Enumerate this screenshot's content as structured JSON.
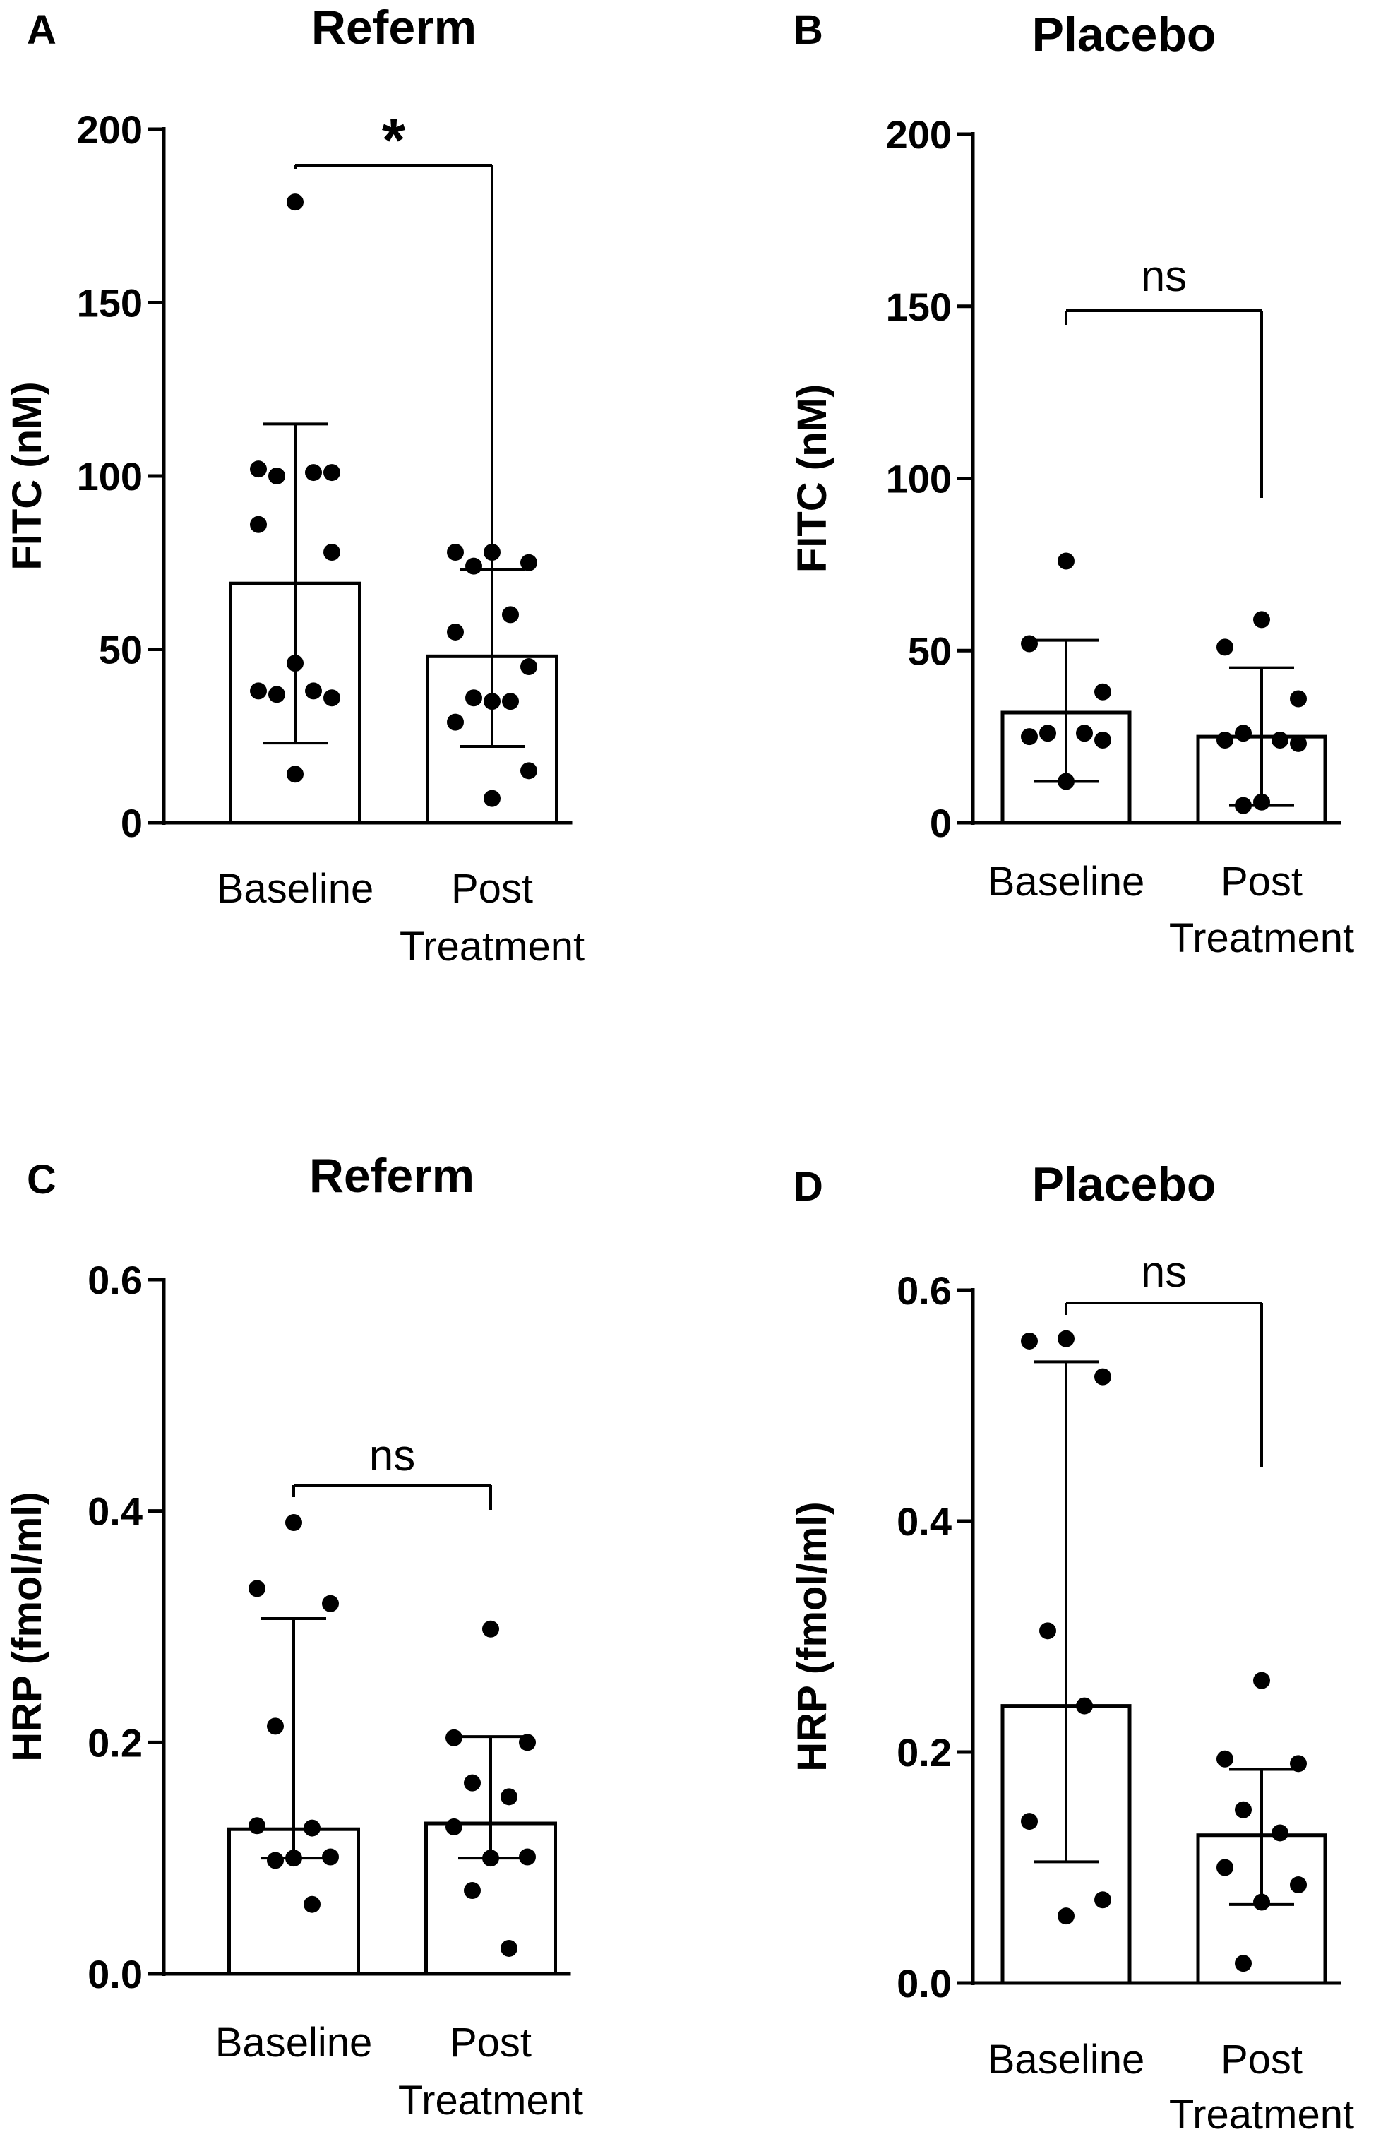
{
  "chart_data": [
    {
      "panel": "A",
      "type": "bar",
      "title": "Referm",
      "xlabel": "",
      "ylabel": "FITC (nM)",
      "ylim": [
        0,
        200
      ],
      "yticks": [
        "0",
        "50",
        "100",
        "150",
        "200"
      ],
      "categories": [
        {
          "line1": "Baseline",
          "line2": ""
        },
        {
          "line1": "Post",
          "line2": "Treatment"
        }
      ],
      "means": [
        69,
        48
      ],
      "error_low": [
        23,
        22
      ],
      "error_high": [
        115,
        73
      ],
      "points": [
        [
          179,
          102,
          101,
          100,
          101,
          86,
          78,
          46,
          37,
          38,
          38,
          36,
          14
        ],
        [
          78,
          78,
          75,
          74,
          60,
          55,
          45,
          35,
          36,
          35,
          29,
          15,
          7
        ]
      ],
      "significance": "*"
    },
    {
      "panel": "B",
      "type": "bar",
      "title": "Placebo",
      "xlabel": "",
      "ylabel": "FITC (nM)",
      "ylim": [
        0,
        200
      ],
      "yticks": [
        "0",
        "50",
        "100",
        "150",
        "200"
      ],
      "categories": [
        {
          "line1": "Baseline",
          "line2": ""
        },
        {
          "line1": "Post",
          "line2": "Treatment"
        }
      ],
      "means": [
        32,
        25
      ],
      "error_low": [
        12,
        5
      ],
      "error_high": [
        53,
        45
      ],
      "points": [
        [
          76,
          52,
          38,
          26,
          26,
          25,
          24,
          12
        ],
        [
          59,
          51,
          36,
          26,
          24,
          24,
          23,
          6,
          5
        ]
      ],
      "significance": "ns"
    },
    {
      "panel": "C",
      "type": "bar",
      "title": "Referm",
      "xlabel": "",
      "ylabel": "HRP (fmol/ml)",
      "ylim": [
        0,
        0.6
      ],
      "yticks": [
        "0.0",
        "0.2",
        "0.4",
        "0.6"
      ],
      "categories": [
        {
          "line1": "Baseline",
          "line2": ""
        },
        {
          "line1": "Post",
          "line2": "Treatment"
        }
      ],
      "means": [
        0.125,
        0.13
      ],
      "error_low": [
        0.1,
        0.1
      ],
      "error_high": [
        0.307,
        0.205
      ],
      "points": [
        [
          0.39,
          0.333,
          0.32,
          0.214,
          0.126,
          0.128,
          0.101,
          0.1,
          0.098,
          0.06
        ],
        [
          0.298,
          0.204,
          0.2,
          0.165,
          0.153,
          0.127,
          0.101,
          0.1,
          0.072,
          0.022
        ]
      ],
      "significance": "ns"
    },
    {
      "panel": "D",
      "type": "bar",
      "title": "Placebo",
      "xlabel": "",
      "ylabel": "HRP (fmol/ml)",
      "ylim": [
        0,
        0.6
      ],
      "yticks": [
        "0.0",
        "0.2",
        "0.4",
        "0.6"
      ],
      "categories": [
        {
          "line1": "Baseline",
          "line2": ""
        },
        {
          "line1": "Post",
          "line2": "Treatment"
        }
      ],
      "means": [
        0.24,
        0.128
      ],
      "error_low": [
        0.105,
        0.068
      ],
      "error_high": [
        0.538,
        0.185
      ],
      "points": [
        [
          0.558,
          0.556,
          0.525,
          0.305,
          0.24,
          0.14,
          0.072,
          0.058
        ],
        [
          0.262,
          0.194,
          0.19,
          0.15,
          0.13,
          0.1,
          0.085,
          0.07,
          0.017
        ]
      ],
      "significance": "ns"
    }
  ]
}
